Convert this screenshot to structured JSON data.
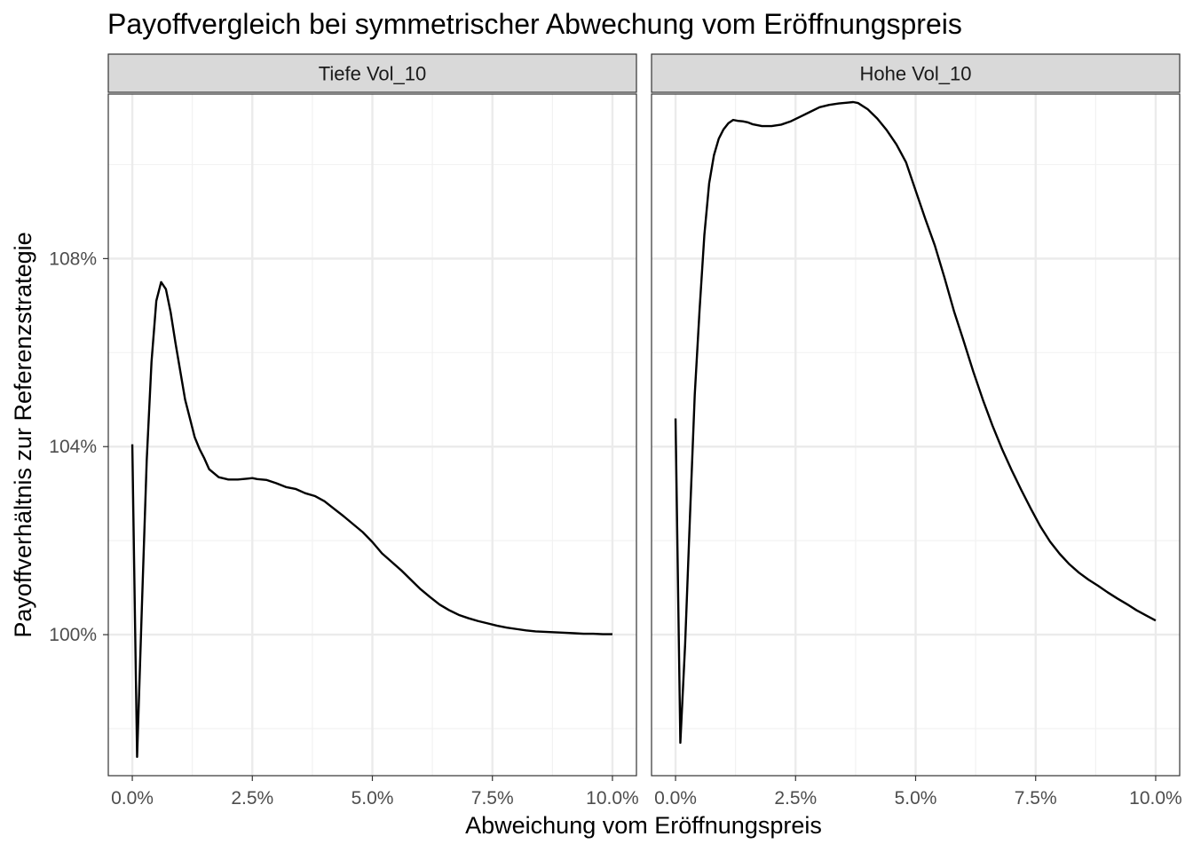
{
  "chart_data": {
    "type": "line",
    "title": "Payoffvergleich bei symmetrischer Abwechung vom Eröffnungspreis",
    "xlabel": "Abweichung vom Eröffnungspreis",
    "ylabel": "Payoffverhältnis zur Referenzstrategie",
    "xlim": [
      -0.5,
      10.5
    ],
    "ylim": [
      97.0,
      111.5
    ],
    "x_ticks": [
      0,
      2.5,
      5,
      7.5,
      10
    ],
    "x_tick_labels": [
      "0.0%",
      "2.5%",
      "5.0%",
      "7.5%",
      "10.0%"
    ],
    "y_ticks": [
      100,
      104,
      108
    ],
    "y_tick_labels": [
      "100%",
      "104%",
      "108%"
    ],
    "grid": true,
    "line_color": "#000000",
    "panels": [
      {
        "name": "Tiefe Vol_10",
        "x": [
          0,
          0.1,
          0.2,
          0.3,
          0.4,
          0.5,
          0.6,
          0.7,
          0.8,
          0.9,
          1.0,
          1.1,
          1.2,
          1.3,
          1.4,
          1.5,
          1.6,
          1.8,
          2.0,
          2.2,
          2.4,
          2.5,
          2.6,
          2.8,
          3.0,
          3.2,
          3.4,
          3.6,
          3.8,
          4.0,
          4.2,
          4.4,
          4.6,
          4.8,
          5.0,
          5.2,
          5.4,
          5.6,
          5.8,
          6.0,
          6.2,
          6.4,
          6.6,
          6.8,
          7.0,
          7.2,
          7.4,
          7.6,
          7.8,
          8.0,
          8.2,
          8.4,
          8.6,
          8.8,
          9.0,
          9.2,
          9.4,
          9.6,
          9.8,
          10.0
        ],
        "y": [
          104.05,
          97.4,
          100.6,
          103.7,
          105.8,
          107.1,
          107.5,
          107.35,
          106.85,
          106.2,
          105.6,
          105.0,
          104.6,
          104.2,
          103.95,
          103.75,
          103.52,
          103.35,
          103.3,
          103.3,
          103.32,
          103.33,
          103.31,
          103.29,
          103.22,
          103.14,
          103.1,
          103.01,
          102.95,
          102.84,
          102.68,
          102.52,
          102.35,
          102.18,
          101.97,
          101.73,
          101.55,
          101.37,
          101.17,
          100.97,
          100.8,
          100.64,
          100.52,
          100.42,
          100.35,
          100.29,
          100.24,
          100.19,
          100.15,
          100.12,
          100.09,
          100.07,
          100.06,
          100.05,
          100.04,
          100.03,
          100.02,
          100.02,
          100.01,
          100.01
        ]
      },
      {
        "name": "Hohe Vol_10",
        "x": [
          0,
          0.1,
          0.2,
          0.3,
          0.4,
          0.5,
          0.6,
          0.7,
          0.8,
          0.9,
          1.0,
          1.1,
          1.2,
          1.3,
          1.4,
          1.5,
          1.6,
          1.8,
          2.0,
          2.2,
          2.4,
          2.6,
          2.8,
          3.0,
          3.2,
          3.4,
          3.6,
          3.7,
          3.8,
          4.0,
          4.2,
          4.4,
          4.6,
          4.8,
          5.0,
          5.2,
          5.4,
          5.6,
          5.8,
          6.0,
          6.2,
          6.4,
          6.6,
          6.8,
          7.0,
          7.2,
          7.4,
          7.6,
          7.8,
          8.0,
          8.2,
          8.4,
          8.6,
          8.8,
          9.0,
          9.2,
          9.4,
          9.6,
          9.8,
          10.0
        ],
        "y": [
          104.6,
          97.7,
          99.8,
          102.5,
          105.1,
          106.9,
          108.5,
          109.6,
          110.2,
          110.55,
          110.75,
          110.88,
          110.95,
          110.93,
          110.92,
          110.9,
          110.86,
          110.82,
          110.82,
          110.85,
          110.92,
          111.02,
          111.12,
          111.22,
          111.27,
          111.3,
          111.32,
          111.33,
          111.31,
          111.18,
          110.98,
          110.73,
          110.43,
          110.05,
          109.45,
          108.85,
          108.28,
          107.6,
          106.88,
          106.25,
          105.6,
          105.0,
          104.45,
          103.95,
          103.5,
          103.08,
          102.68,
          102.3,
          101.98,
          101.72,
          101.5,
          101.32,
          101.17,
          101.04,
          100.9,
          100.77,
          100.65,
          100.52,
          100.41,
          100.3
        ]
      }
    ]
  }
}
